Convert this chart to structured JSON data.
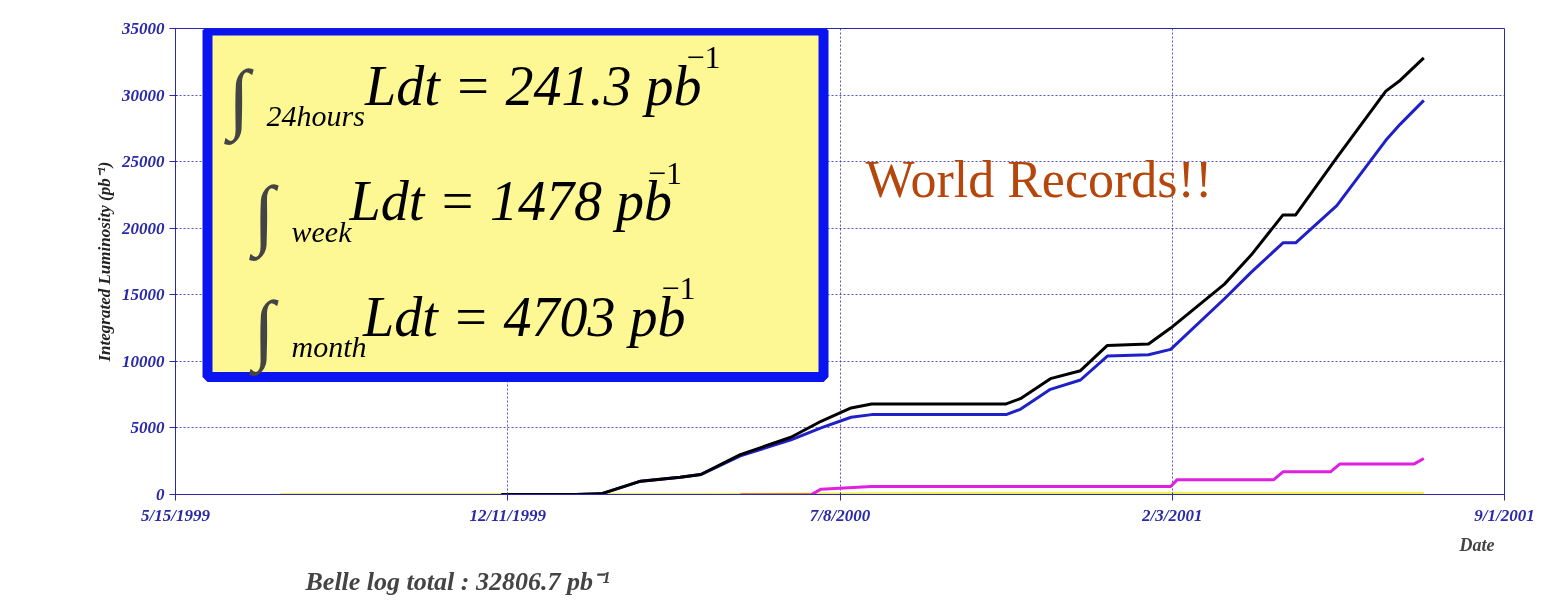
{
  "chart_data": {
    "type": "line",
    "xlabel": "Date",
    "ylabel": "Integrated Luminosity (pb⁻¹)",
    "xlim": [
      "1999-05-15",
      "2001-09-01"
    ],
    "ylim": [
      0,
      35000
    ],
    "xticks": [
      {
        "value": "1999-05-15",
        "label": "5/15/1999"
      },
      {
        "value": "1999-12-11",
        "label": "12/11/1999"
      },
      {
        "value": "2000-07-08",
        "label": "7/8/2000"
      },
      {
        "value": "2001-02-03",
        "label": "2/3/2001"
      },
      {
        "value": "2001-09-01",
        "label": "9/1/2001"
      }
    ],
    "yticks": [
      0,
      5000,
      10000,
      15000,
      20000,
      25000,
      30000,
      35000
    ],
    "grid": true,
    "series": [
      {
        "color": "#f0ee50",
        "x": [
          "1999-07-20",
          "2000-04-11",
          "2000-10-21",
          "2001-07-12"
        ],
        "values": [
          0,
          0,
          100,
          100
        ]
      },
      {
        "color": "#f08030",
        "x": [
          "2000-05-06",
          "2000-06-20"
        ],
        "values": [
          0,
          0
        ]
      },
      {
        "color": "#e020e0",
        "x": [
          "2000-06-20",
          "2000-06-26",
          "2000-07-28",
          "2001-02-02",
          "2001-02-06",
          "2001-04-08",
          "2001-04-14",
          "2001-05-14",
          "2001-05-20",
          "2001-07-06",
          "2001-07-12"
        ],
        "values": [
          0,
          400,
          600,
          600,
          1100,
          1100,
          1700,
          1700,
          2300,
          2300,
          2700
        ]
      },
      {
        "color": "#2020c8",
        "x": [
          "1999-12-07",
          "2000-01-23",
          "2000-02-08",
          "2000-03-04",
          "2000-03-29",
          "2000-04-11",
          "2000-05-06",
          "2000-06-07",
          "2000-06-26",
          "2000-07-15",
          "2000-07-28",
          "2000-10-21",
          "2000-10-30",
          "2000-11-18",
          "2000-12-07",
          "2000-12-24",
          "2001-01-19",
          "2001-02-02",
          "2001-03-08",
          "2001-03-25",
          "2001-04-14",
          "2001-04-22",
          "2001-05-18",
          "2001-06-18",
          "2001-06-27",
          "2001-07-12"
        ],
        "values": [
          0,
          0,
          50,
          1000,
          1300,
          1500,
          2900,
          4100,
          5000,
          5800,
          6000,
          6000,
          6400,
          7900,
          8600,
          10400,
          10500,
          10900,
          14700,
          16700,
          18900,
          18900,
          21700,
          26600,
          27800,
          29600
        ]
      },
      {
        "color": "#000000",
        "x": [
          "1999-12-07",
          "2000-01-23",
          "2000-02-08",
          "2000-03-04",
          "2000-03-29",
          "2000-04-11",
          "2000-05-06",
          "2000-06-07",
          "2000-06-26",
          "2000-07-15",
          "2000-07-28",
          "2000-10-21",
          "2000-10-30",
          "2000-11-18",
          "2000-12-07",
          "2000-12-24",
          "2001-01-19",
          "2001-02-02",
          "2001-03-08",
          "2001-03-25",
          "2001-04-14",
          "2001-04-22",
          "2001-05-18",
          "2001-06-18",
          "2001-06-27",
          "2001-07-12"
        ],
        "values": [
          0,
          0,
          50,
          1000,
          1300,
          1500,
          3000,
          4300,
          5500,
          6500,
          6800,
          6800,
          7200,
          8700,
          9300,
          11200,
          11300,
          12500,
          15800,
          18000,
          21000,
          21000,
          25300,
          30300,
          31100,
          32800
        ]
      }
    ],
    "annotations": [
      "∫$_{24hours}$Ldt = 241.3 pb$^{−1}$",
      "∫$_{week}$Ldt = 1478 pb$^{−1}$",
      "∫$_{month}$Ldt = 4703 pb$^{−1}$",
      "World Records!!",
      "Belle log total : 32806.7 pb⁻¹"
    ]
  }
}
